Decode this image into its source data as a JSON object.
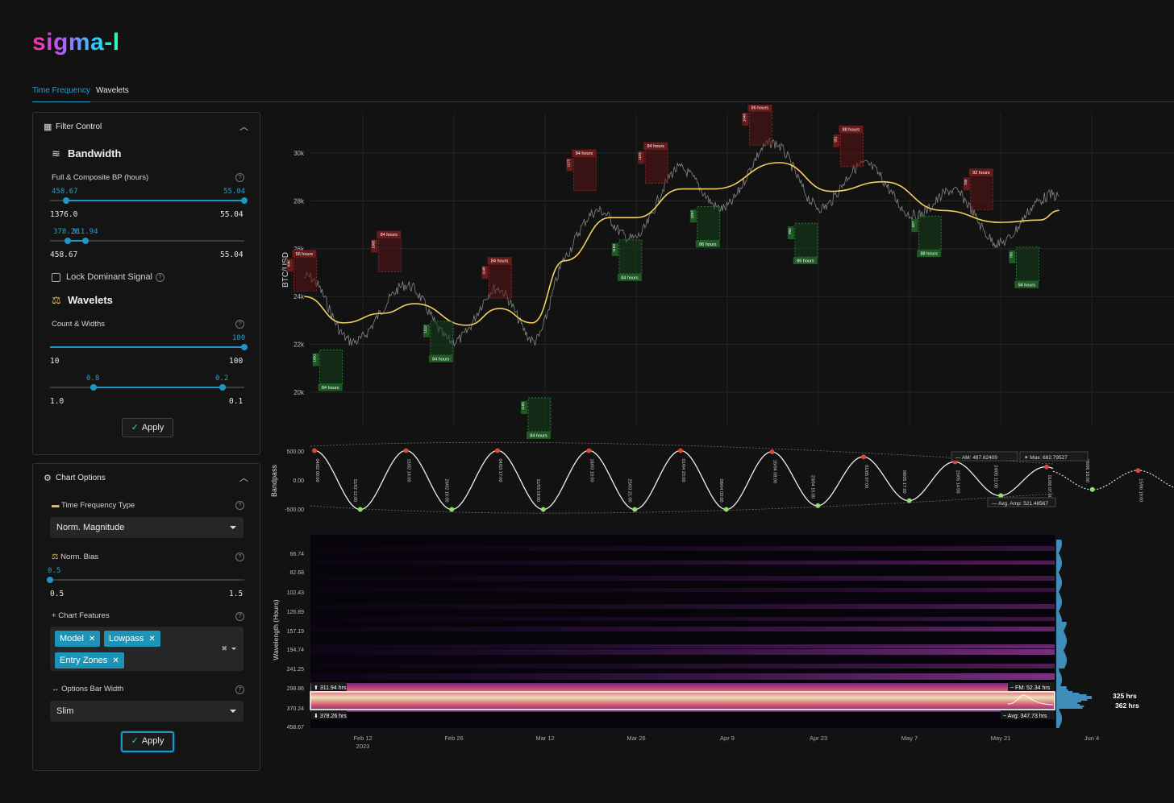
{
  "app": {
    "logo": "sigma-l"
  },
  "tabs": [
    {
      "label": "Time Frequency",
      "active": true
    },
    {
      "label": "Wavelets",
      "active": false
    }
  ],
  "filter_control": {
    "title": "Filter Control",
    "bandwidth": {
      "title": "Bandwidth",
      "label": "Full & Composite BP (hours)",
      "full": {
        "low": "458.67",
        "high": "55.04",
        "min": "1376.0",
        "max": "55.04"
      },
      "composite": {
        "low": "378.26",
        "high": "311.94",
        "min": "458.67",
        "max": "55.04"
      }
    },
    "lock_label": "Lock Dominant Signal",
    "wavelets": {
      "title": "Wavelets",
      "label": "Count & Widths",
      "count": {
        "value": "100",
        "min": "10",
        "max": "100"
      },
      "widths": {
        "low": "0.8",
        "high": "0.2",
        "min": "1.0",
        "max": "0.1"
      }
    },
    "apply": "Apply"
  },
  "chart_options": {
    "title": "Chart Options",
    "tf_type_label": "Time Frequency Type",
    "tf_type_value": "Norm. Magnitude",
    "norm_bias_label": "Norm. Bias",
    "norm_bias": {
      "value": "0.5",
      "min": "0.5",
      "max": "1.5"
    },
    "features_label": "Chart Features",
    "features": [
      "Model",
      "Lowpass",
      "Entry Zones"
    ],
    "bar_width_label": "Options Bar Width",
    "bar_width_value": "Slim",
    "apply": "Apply"
  },
  "chart_data": [
    {
      "type": "line",
      "ylabel": "BTC/USD",
      "y_ticks": [
        "30k",
        "28k",
        "26k",
        "24k",
        "22k",
        "20k"
      ],
      "lowpass": [
        {
          "x": "2023-02-03",
          "y": 24000
        },
        {
          "x": "2023-02-09",
          "y": 22900
        },
        {
          "x": "2023-02-15",
          "y": 23300
        },
        {
          "x": "2023-02-20",
          "y": 23700
        },
        {
          "x": "2023-02-28",
          "y": 22800
        },
        {
          "x": "2023-03-05",
          "y": 23500
        },
        {
          "x": "2023-03-10",
          "y": 22900
        },
        {
          "x": "2023-03-15",
          "y": 25500
        },
        {
          "x": "2023-03-22",
          "y": 27300
        },
        {
          "x": "2023-03-26",
          "y": 27300
        },
        {
          "x": "2023-04-02",
          "y": 28500
        },
        {
          "x": "2023-04-07",
          "y": 28500
        },
        {
          "x": "2023-04-17",
          "y": 29600
        },
        {
          "x": "2023-04-25",
          "y": 28400
        },
        {
          "x": "2023-05-03",
          "y": 28800
        },
        {
          "x": "2023-05-12",
          "y": 27600
        },
        {
          "x": "2023-05-21",
          "y": 27100
        },
        {
          "x": "2023-05-27",
          "y": 27200
        },
        {
          "x": "2023-05-30",
          "y": 27600
        }
      ],
      "entry_zones": [
        {
          "kind": "high",
          "label": "56 hours",
          "marker": "040",
          "x": "2023-02-03",
          "y": 24300
        },
        {
          "kind": "low",
          "label": "84 hours",
          "marker": "1001",
          "x": "2023-02-07",
          "y": 21700
        },
        {
          "kind": "high",
          "label": "84 hours",
          "marker": "1005",
          "x": "2023-02-16",
          "y": 25100
        },
        {
          "kind": "low",
          "label": "84 hours",
          "marker": "1112",
          "x": "2023-02-24",
          "y": 22900
        },
        {
          "kind": "high",
          "label": "84 hours",
          "marker": "1148",
          "x": "2023-03-05",
          "y": 24000
        },
        {
          "kind": "low",
          "label": "84 hours",
          "marker": "1165",
          "x": "2023-03-11",
          "y": 19700
        },
        {
          "kind": "high",
          "label": "84 hours",
          "marker": "1173",
          "x": "2023-03-18",
          "y": 28500
        },
        {
          "kind": "low",
          "label": "84 hours",
          "marker": "1183",
          "x": "2023-03-25",
          "y": 26300
        },
        {
          "kind": "high",
          "label": "84 hours",
          "marker": "1191",
          "x": "2023-03-29",
          "y": 28800
        },
        {
          "kind": "low",
          "label": "86 hours",
          "marker": "1097",
          "x": "2023-04-06",
          "y": 27700
        },
        {
          "kind": "high",
          "label": "86 hours",
          "marker": "1046",
          "x": "2023-04-14",
          "y": 30400
        },
        {
          "kind": "low",
          "label": "86 hours",
          "marker": "992",
          "x": "2023-04-21",
          "y": 27000
        },
        {
          "kind": "high",
          "label": "88 hours",
          "marker": "951",
          "x": "2023-04-28",
          "y": 29500
        },
        {
          "kind": "low",
          "label": "88 hours",
          "marker": "827",
          "x": "2023-05-10",
          "y": 27300
        },
        {
          "kind": "high",
          "label": "92 hours",
          "marker": "785",
          "x": "2023-05-18",
          "y": 27700
        },
        {
          "kind": "low",
          "label": "94 hours",
          "marker": "766",
          "x": "2023-05-25",
          "y": 26000
        }
      ]
    },
    {
      "type": "line",
      "ylabel": "Bandpass",
      "y_ticks": [
        "500.00",
        "0.00",
        "-500.00"
      ],
      "peaks": [
        "04/02 00:00",
        "15/02 14:00",
        "04/03 17:00",
        "18/03 19:00",
        "01/04 23:00",
        "16/04 08:00",
        "01/05 07:00",
        "15/05 14:00",
        "01/06 07:00",
        "15/06 19:00"
      ],
      "troughs": [
        "11/02 12:00",
        "26/02 16:00",
        "11/03 18:00",
        "25/03 21:00",
        "08/04 03:00",
        "23/04 15:00",
        "08/05 17:00",
        "24/05 11:00",
        "08/06 16:00"
      ],
      "tag_am": "AM: 487.62409",
      "tag_max": "Max: 682.79527",
      "tag_avg": "Avg. Amp: 521.48567"
    },
    {
      "type": "heatmap",
      "ylabel": "Wavelength (Hours)",
      "y_ticks": [
        "66.74",
        "82.68",
        "102.43",
        "126.89",
        "157.19",
        "194.74",
        "241.25",
        "298.86",
        "370.24",
        "458.67"
      ],
      "x_ticks": [
        "Feb 12",
        "Feb 26",
        "Mar 12",
        "Mar 26",
        "Apr 9",
        "Apr 23",
        "May 7",
        "May 21",
        "Jun 4"
      ],
      "x_year": "2023",
      "band_top": "311.94 hrs",
      "band_bottom": "378.26 hrs",
      "fm": "FM: 52.34 hrs",
      "avg": "Avg: 347.73 hrs",
      "peak_labels": [
        "325 hrs",
        "362 hrs"
      ],
      "colors": {
        "hot": "#fff3c4",
        "mid": "#e25d7e",
        "low": "#5e2b8a",
        "bg": "#07040c"
      }
    }
  ]
}
